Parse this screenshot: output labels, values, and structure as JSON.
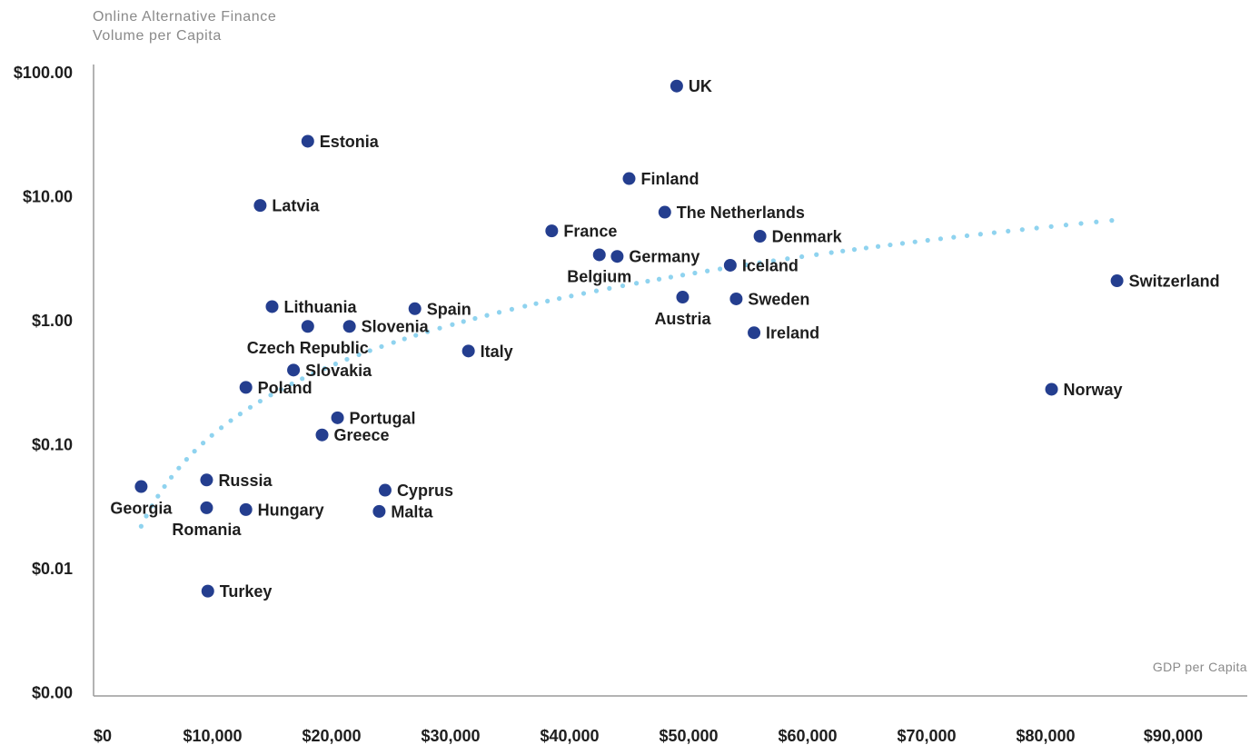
{
  "chart_data": {
    "type": "scatter",
    "title": "",
    "ylabel_lines": [
      "Online Alternative Finance",
      "Volume per Capita"
    ],
    "xlabel": "GDP per Capita",
    "y_scale": "log",
    "y_ticks": [
      {
        "value": 0.001,
        "label": "$0.00"
      },
      {
        "value": 0.01,
        "label": "$0.01"
      },
      {
        "value": 0.1,
        "label": "$0.10"
      },
      {
        "value": 1,
        "label": "$1.00"
      },
      {
        "value": 10,
        "label": "$10.00"
      },
      {
        "value": 100,
        "label": "$100.00"
      }
    ],
    "x_ticks": [
      {
        "value": 0,
        "label": "$0"
      },
      {
        "value": 10000,
        "label": "$10,000"
      },
      {
        "value": 20000,
        "label": "$20,000"
      },
      {
        "value": 30000,
        "label": "$30,000"
      },
      {
        "value": 40000,
        "label": "$40,000"
      },
      {
        "value": 50000,
        "label": "$50,000"
      },
      {
        "value": 60000,
        "label": "$60,000"
      },
      {
        "value": 70000,
        "label": "$70,000"
      },
      {
        "value": 80000,
        "label": "$80,000"
      },
      {
        "value": 90000,
        "label": "$90,000"
      }
    ],
    "xlim": [
      0,
      95000
    ],
    "ylim": [
      0.001,
      100
    ],
    "grid": false,
    "point_color": "#243e8f",
    "trend_color": "#8fd3ef",
    "trend": {
      "type": "logarithmic",
      "x_from": 4000,
      "x_to": 86000,
      "y_from": 0.022,
      "y_to": 6.5
    },
    "points": [
      {
        "name": "UK",
        "x": 49000,
        "y": 78,
        "label_pos": "right"
      },
      {
        "name": "Estonia",
        "x": 18000,
        "y": 28,
        "label_pos": "right"
      },
      {
        "name": "Finland",
        "x": 45000,
        "y": 14,
        "label_pos": "right"
      },
      {
        "name": "Latvia",
        "x": 14000,
        "y": 8.5,
        "label_pos": "right"
      },
      {
        "name": "The Netherlands",
        "x": 48000,
        "y": 7.5,
        "label_pos": "right"
      },
      {
        "name": "France",
        "x": 38500,
        "y": 5.3,
        "label_pos": "right"
      },
      {
        "name": "Denmark",
        "x": 56000,
        "y": 4.8,
        "label_pos": "right"
      },
      {
        "name": "Germany",
        "x": 44000,
        "y": 3.3,
        "label_pos": "right"
      },
      {
        "name": "Belgium",
        "x": 42500,
        "y": 3.4,
        "label_pos": "below"
      },
      {
        "name": "Iceland",
        "x": 53500,
        "y": 2.8,
        "label_pos": "right"
      },
      {
        "name": "Switzerland",
        "x": 86000,
        "y": 2.1,
        "label_pos": "right"
      },
      {
        "name": "Lithuania",
        "x": 15000,
        "y": 1.3,
        "label_pos": "right"
      },
      {
        "name": "Spain",
        "x": 27000,
        "y": 1.25,
        "label_pos": "right"
      },
      {
        "name": "Austria",
        "x": 49500,
        "y": 1.55,
        "label_pos": "below"
      },
      {
        "name": "Sweden",
        "x": 54000,
        "y": 1.5,
        "label_pos": "right"
      },
      {
        "name": "Slovenia",
        "x": 21500,
        "y": 0.9,
        "label_pos": "right"
      },
      {
        "name": "Czech Republic",
        "x": 18000,
        "y": 0.9,
        "label_pos": "below"
      },
      {
        "name": "Ireland",
        "x": 55500,
        "y": 0.8,
        "label_pos": "right"
      },
      {
        "name": "Italy",
        "x": 31500,
        "y": 0.57,
        "label_pos": "right"
      },
      {
        "name": "Slovakia",
        "x": 16800,
        "y": 0.4,
        "label_pos": "right"
      },
      {
        "name": "Poland",
        "x": 12800,
        "y": 0.29,
        "label_pos": "right"
      },
      {
        "name": "Norway",
        "x": 80500,
        "y": 0.28,
        "label_pos": "right"
      },
      {
        "name": "Portugal",
        "x": 20500,
        "y": 0.165,
        "label_pos": "right"
      },
      {
        "name": "Greece",
        "x": 19200,
        "y": 0.12,
        "label_pos": "right"
      },
      {
        "name": "Russia",
        "x": 9500,
        "y": 0.052,
        "label_pos": "right"
      },
      {
        "name": "Georgia",
        "x": 4000,
        "y": 0.046,
        "label_pos": "below"
      },
      {
        "name": "Cyprus",
        "x": 24500,
        "y": 0.043,
        "label_pos": "right"
      },
      {
        "name": "Romania",
        "x": 9500,
        "y": 0.031,
        "label_pos": "below"
      },
      {
        "name": "Hungary",
        "x": 12800,
        "y": 0.03,
        "label_pos": "right"
      },
      {
        "name": "Malta",
        "x": 24000,
        "y": 0.029,
        "label_pos": "right"
      },
      {
        "name": "Turkey",
        "x": 9600,
        "y": 0.0066,
        "label_pos": "right"
      }
    ]
  }
}
